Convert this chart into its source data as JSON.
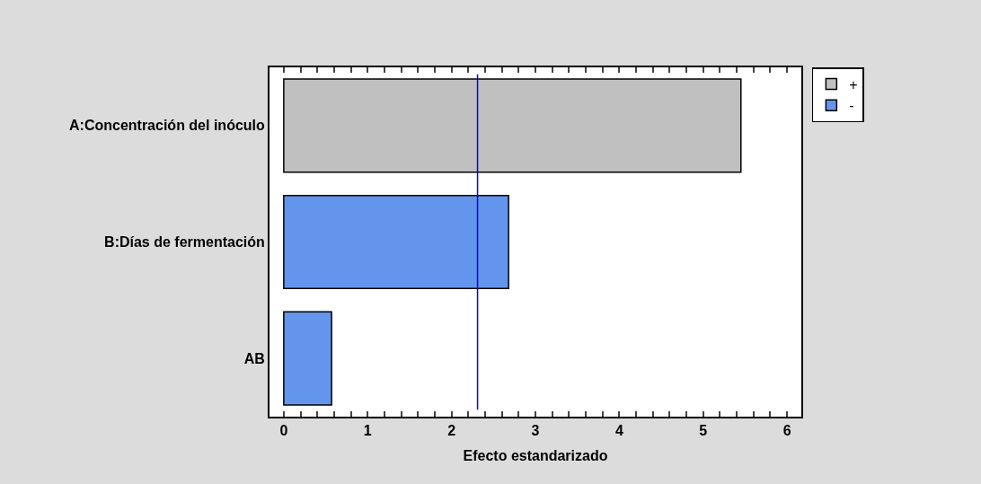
{
  "chart_data": {
    "type": "bar",
    "orientation": "horizontal",
    "xlabel": "Efecto estandarizado",
    "categories": [
      "A:Concentración del inóculo",
      "B:Días de fermentación",
      "AB"
    ],
    "series": [
      {
        "name": "+",
        "color": "#c0c0c0",
        "values": [
          5.45,
          null,
          null
        ]
      },
      {
        "name": "-",
        "color": "#6495ed",
        "values": [
          null,
          2.68,
          0.57
        ]
      }
    ],
    "xlim": [
      -0.17,
      6.17
    ],
    "xticks": [
      0,
      {
        "value": 0.2,
        "label": null
      },
      {
        "value": 0.4,
        "label": null
      },
      {
        "value": 0.6,
        "label": null
      },
      {
        "value": 0.8,
        "label": null
      },
      1,
      {
        "value": 1.2,
        "label": null
      },
      {
        "value": 1.4,
        "label": null
      },
      {
        "value": 1.6,
        "label": null
      },
      {
        "value": 1.8,
        "label": null
      },
      2,
      {
        "value": 2.2,
        "label": null
      },
      {
        "value": 2.4,
        "label": null
      },
      {
        "value": 2.6,
        "label": null
      },
      {
        "value": 2.8,
        "label": null
      },
      3,
      {
        "value": 3.2,
        "label": null
      },
      {
        "value": 3.4,
        "label": null
      },
      {
        "value": 3.6,
        "label": null
      },
      {
        "value": 3.8,
        "label": null
      },
      4,
      {
        "value": 4.2,
        "label": null
      },
      {
        "value": 4.4,
        "label": null
      },
      {
        "value": 4.6,
        "label": null
      },
      {
        "value": 4.8,
        "label": null
      },
      5,
      {
        "value": 5.2,
        "label": null
      },
      {
        "value": 5.4,
        "label": null
      },
      {
        "value": 5.6,
        "label": null
      },
      {
        "value": 5.8,
        "label": null
      },
      6
    ],
    "ref_lines": [
      {
        "axis": "x",
        "value": 2.31,
        "color": "#0000ff"
      }
    ],
    "legend": "top right"
  }
}
